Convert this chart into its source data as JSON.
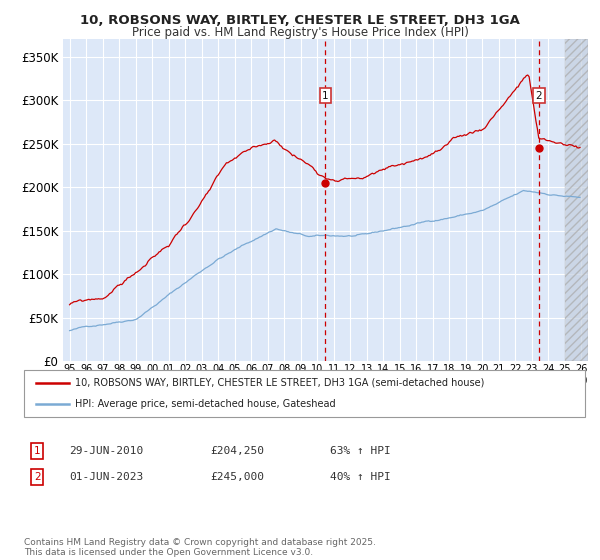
{
  "title1": "10, ROBSONS WAY, BIRTLEY, CHESTER LE STREET, DH3 1GA",
  "title2": "Price paid vs. HM Land Registry's House Price Index (HPI)",
  "ylabel_ticks": [
    "£0",
    "£50K",
    "£100K",
    "£150K",
    "£200K",
    "£250K",
    "£300K",
    "£350K"
  ],
  "ytick_values": [
    0,
    50000,
    100000,
    150000,
    200000,
    250000,
    300000,
    350000
  ],
  "ylim": [
    0,
    370000
  ],
  "xlim_start": 1994.6,
  "xlim_end": 2026.4,
  "xtick_years": [
    1995,
    1996,
    1997,
    1998,
    1999,
    2000,
    2001,
    2002,
    2003,
    2004,
    2005,
    2006,
    2007,
    2008,
    2009,
    2010,
    2011,
    2012,
    2013,
    2014,
    2015,
    2016,
    2017,
    2018,
    2019,
    2020,
    2021,
    2022,
    2023,
    2024,
    2025,
    2026
  ],
  "bg_color": "#dde8f8",
  "grid_color": "#ffffff",
  "future_color": "#c4cfdf",
  "future_start": 2025.0,
  "sale1_x": 2010.5,
  "sale1_y": 204250,
  "sale2_x": 2023.42,
  "sale2_y": 245000,
  "line1_color": "#cc0000",
  "line2_color": "#7baad4",
  "legend_line1": "10, ROBSONS WAY, BIRTLEY, CHESTER LE STREET, DH3 1GA (semi-detached house)",
  "legend_line2": "HPI: Average price, semi-detached house, Gateshead",
  "note1_date": "29-JUN-2010",
  "note1_price": "£204,250",
  "note1_hpi": "63% ↑ HPI",
  "note2_date": "01-JUN-2023",
  "note2_price": "£245,000",
  "note2_hpi": "40% ↑ HPI",
  "footer": "Contains HM Land Registry data © Crown copyright and database right 2025.\nThis data is licensed under the Open Government Licence v3.0."
}
